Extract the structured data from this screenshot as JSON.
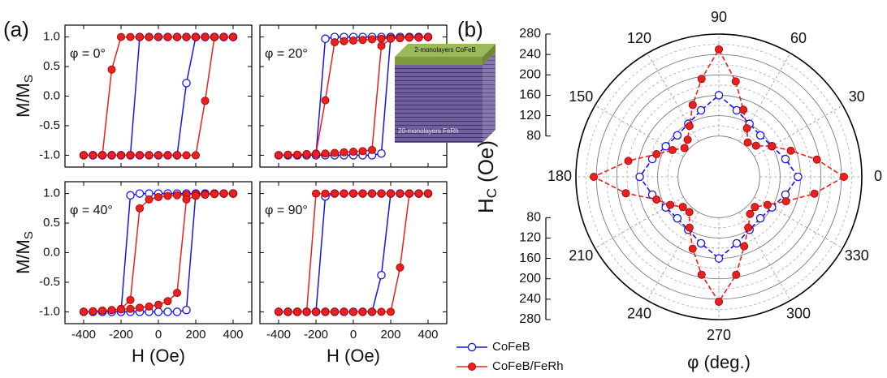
{
  "chart_data": [
    {
      "type": "line",
      "panel_label": "(a)",
      "annotation": "φ = 0°",
      "ylabel": "M/M",
      "ylabel_sub": "S",
      "x": [
        400,
        350,
        300,
        250,
        200,
        150,
        100,
        50,
        0,
        -50,
        -100,
        -150,
        -200,
        -250,
        -300,
        -350,
        -400,
        -350,
        -300,
        -250,
        -200,
        -150,
        -100,
        -50,
        0,
        50,
        100,
        150,
        200,
        250,
        300,
        350,
        400
      ],
      "xlim": [
        -500,
        500
      ],
      "xticks": [
        -400,
        -200,
        0,
        200,
        400
      ],
      "xtick_labels": false,
      "ylim": [
        -1.2,
        1.2
      ],
      "yticks": [
        {
          "value": -1,
          "label": "-1.0"
        },
        -0.5,
        {
          "value": 0,
          "label": "0.0"
        },
        0.5,
        {
          "value": 1,
          "label": "1.0"
        }
      ],
      "series": [
        {
          "color": "#1515e6",
          "marker": "open",
          "values": [
            1,
            1,
            1,
            1,
            1,
            1,
            1,
            1,
            1,
            1,
            1,
            -1,
            -1,
            -1,
            -1,
            -1,
            -1,
            -1,
            -1,
            -1,
            -1,
            -1,
            -1,
            -1,
            -1,
            -1,
            -1,
            0.22,
            1,
            1,
            1,
            1,
            1
          ]
        },
        {
          "color": "#e8201f",
          "marker": "filled",
          "values": [
            1,
            1,
            1,
            1,
            1,
            1,
            1,
            1,
            1,
            1,
            1,
            1,
            1,
            0.45,
            -1,
            -1,
            -1,
            -1,
            -1,
            -1,
            -1,
            -1,
            -1,
            -1,
            -1,
            -1,
            -1,
            -1,
            -1,
            -0.08,
            1,
            1,
            1
          ]
        }
      ]
    },
    {
      "type": "line",
      "annotation": "φ = 20°",
      "inset": {
        "top_label": "2-monolayers CoFeB",
        "bottom_label": "20-monolayers FeRh"
      },
      "x": [
        400,
        350,
        300,
        250,
        200,
        150,
        100,
        50,
        0,
        -50,
        -100,
        -150,
        -200,
        -250,
        -300,
        -350,
        -400,
        -350,
        -300,
        -250,
        -200,
        -150,
        -100,
        -50,
        0,
        50,
        100,
        150,
        200,
        250,
        300,
        350,
        400
      ],
      "xlim": [
        -500,
        500
      ],
      "xticks": [
        -400,
        -200,
        0,
        200,
        400
      ],
      "xtick_labels": false,
      "ylim": [
        -1.2,
        1.2
      ],
      "yticks": [
        -1,
        -0.5,
        0,
        0.5,
        1
      ],
      "ytick_labels": false,
      "series": [
        {
          "color": "#1515e6",
          "marker": "open",
          "values": [
            1,
            1,
            1,
            1,
            1,
            1,
            1,
            1,
            1,
            1,
            1,
            0.97,
            -1,
            -1,
            -1,
            -1,
            -1,
            -1,
            -1,
            -1,
            -1,
            -1,
            -1,
            -1,
            -1,
            -1,
            -1,
            -0.97,
            1,
            1,
            1,
            1,
            1
          ]
        },
        {
          "color": "#e8201f",
          "marker": "filled",
          "values": [
            1,
            0.99,
            0.99,
            0.98,
            0.98,
            0.97,
            0.96,
            0.95,
            0.94,
            0.93,
            0.91,
            -0.07,
            -0.97,
            -0.98,
            -0.99,
            -0.99,
            -1,
            -0.99,
            -0.99,
            -0.98,
            -0.98,
            -0.97,
            -0.96,
            -0.95,
            -0.94,
            -0.93,
            -0.91,
            0.85,
            0.97,
            0.98,
            0.99,
            0.99,
            1
          ]
        }
      ]
    },
    {
      "type": "line",
      "annotation": "φ = 40°",
      "ylabel": "M/M",
      "ylabel_sub": "S",
      "xlabel": "H (Oe)",
      "x": [
        400,
        350,
        300,
        250,
        200,
        150,
        100,
        50,
        0,
        -50,
        -100,
        -150,
        -200,
        -250,
        -300,
        -350,
        -400,
        -350,
        -300,
        -250,
        -200,
        -150,
        -100,
        -50,
        0,
        50,
        100,
        150,
        200,
        250,
        300,
        350,
        400
      ],
      "xlim": [
        -500,
        500
      ],
      "xticks": [
        -400,
        -200,
        0,
        200,
        400
      ],
      "ylim": [
        -1.2,
        1.2
      ],
      "yticks": [
        {
          "value": -1,
          "label": "-1.0"
        },
        -0.5,
        {
          "value": 0,
          "label": "0.0"
        },
        0.5,
        {
          "value": 1,
          "label": "1.0"
        }
      ],
      "series": [
        {
          "color": "#1515e6",
          "marker": "open",
          "values": [
            1,
            1,
            1,
            1,
            1,
            1,
            1,
            1,
            1,
            1,
            1,
            0.97,
            -1,
            -1,
            -1,
            -1,
            -1,
            -1,
            -1,
            -1,
            -1,
            -1,
            -1,
            -1,
            -1,
            -1,
            -1,
            -0.97,
            1,
            1,
            1,
            1,
            1
          ]
        },
        {
          "color": "#e8201f",
          "marker": "filled",
          "values": [
            1,
            1,
            1,
            0.99,
            0.99,
            0.98,
            0.97,
            0.96,
            0.94,
            0.9,
            0.75,
            -0.8,
            -0.95,
            -0.97,
            -0.98,
            -0.99,
            -1,
            -0.99,
            -0.98,
            -0.97,
            -0.96,
            -0.95,
            -0.93,
            -0.91,
            -0.88,
            -0.82,
            -0.68,
            0.9,
            0.96,
            0.98,
            0.99,
            1,
            1
          ]
        }
      ]
    },
    {
      "type": "line",
      "annotation": "φ = 90°",
      "xlabel": "H (Oe)",
      "x": [
        400,
        350,
        300,
        250,
        200,
        150,
        100,
        50,
        0,
        -50,
        -100,
        -150,
        -200,
        -250,
        -300,
        -350,
        -400,
        -350,
        -300,
        -250,
        -200,
        -150,
        -100,
        -50,
        0,
        50,
        100,
        150,
        200,
        250,
        300,
        350,
        400
      ],
      "xlim": [
        -500,
        500
      ],
      "xticks": [
        -400,
        -200,
        0,
        200,
        400
      ],
      "ylim": [
        -1.2,
        1.2
      ],
      "yticks": [
        -1,
        -0.5,
        0,
        0.5,
        1
      ],
      "ytick_labels": false,
      "series": [
        {
          "color": "#1515e6",
          "marker": "open",
          "values": [
            1,
            1,
            1,
            1,
            1,
            1,
            1,
            1,
            1,
            1,
            1,
            0.95,
            -1,
            -1,
            -1,
            -1,
            -1,
            -1,
            -1,
            -1,
            -1,
            -1,
            -1,
            -1,
            -1,
            -1,
            -1,
            -0.38,
            1,
            1,
            1,
            1,
            1
          ]
        },
        {
          "color": "#e8201f",
          "marker": "filled",
          "values": [
            1,
            1,
            1,
            1,
            1,
            1,
            1,
            1,
            1,
            1,
            1,
            1,
            1,
            -1,
            -1,
            -1,
            -1,
            -1,
            -1,
            -1,
            -1,
            -1,
            -1,
            -1,
            -1,
            -1,
            -1,
            -1,
            -1,
            -0.25,
            1,
            1,
            1
          ]
        }
      ]
    },
    {
      "type": "polar",
      "panel_label": "(b)",
      "rlabel": "H",
      "rlabel_sub": "C",
      "rlabel_unit": "(Oe)",
      "xlabel": "φ (deg.)",
      "rlim": [
        0,
        280
      ],
      "rticks": [
        80,
        120,
        160,
        200,
        240,
        280
      ],
      "thetaticks": [
        0,
        30,
        60,
        90,
        120,
        150,
        180,
        210,
        240,
        270,
        300,
        330
      ],
      "series": [
        {
          "name": "CoFeB",
          "color": "#1515e6",
          "marker": "open",
          "theta": [
            0,
            15,
            30,
            45,
            60,
            75,
            90,
            105,
            120,
            135,
            150,
            165,
            180,
            195,
            210,
            225,
            240,
            255,
            270,
            285,
            300,
            315,
            330,
            345
          ],
          "values": [
            155,
            135,
            120,
            115,
            120,
            135,
            160,
            135,
            120,
            115,
            120,
            135,
            155,
            135,
            120,
            115,
            120,
            135,
            160,
            135,
            120,
            115,
            120,
            135
          ]
        },
        {
          "name": "CoFeB/FeRh",
          "color": "#e8201f",
          "marker": "filled",
          "theta": [
            0,
            10,
            20,
            30,
            40,
            50,
            60,
            70,
            80,
            90,
            100,
            110,
            120,
            130,
            140,
            150,
            160,
            170,
            180,
            190,
            200,
            210,
            220,
            230,
            240,
            250,
            260,
            270,
            280,
            290,
            300,
            310,
            320,
            330,
            340,
            350
          ],
          "values": [
            245,
            195,
            150,
            120,
            95,
            88,
            110,
            140,
            190,
            250,
            195,
            150,
            115,
            95,
            88,
            105,
            130,
            180,
            245,
            185,
            130,
            110,
            92,
            90,
            115,
            150,
            195,
            245,
            195,
            145,
            115,
            95,
            92,
            110,
            140,
            190
          ]
        }
      ]
    }
  ]
}
